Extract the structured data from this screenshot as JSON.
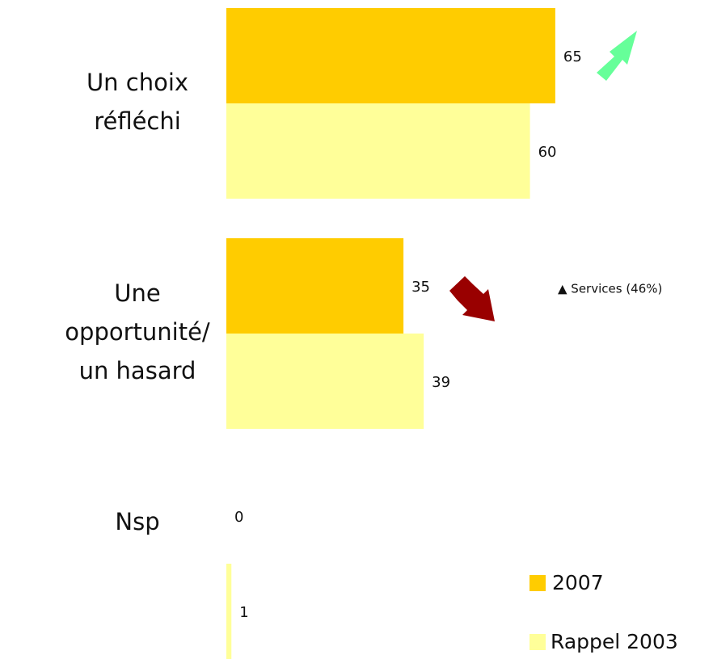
{
  "chart_data": {
    "type": "hbar",
    "categories": [
      [
        "Un choix",
        "réfléchi"
      ],
      [
        "Une",
        "opportunité/",
        "un hasard"
      ],
      [
        "Nsp"
      ]
    ],
    "series": [
      {
        "name": "2007",
        "color": "#ffcc00",
        "values": [
          65,
          35,
          0
        ]
      },
      {
        "name": "Rappel 2003",
        "color": "#ffff99",
        "values": [
          60,
          39,
          1
        ]
      }
    ],
    "annotation": "▲ Services (46%)"
  }
}
